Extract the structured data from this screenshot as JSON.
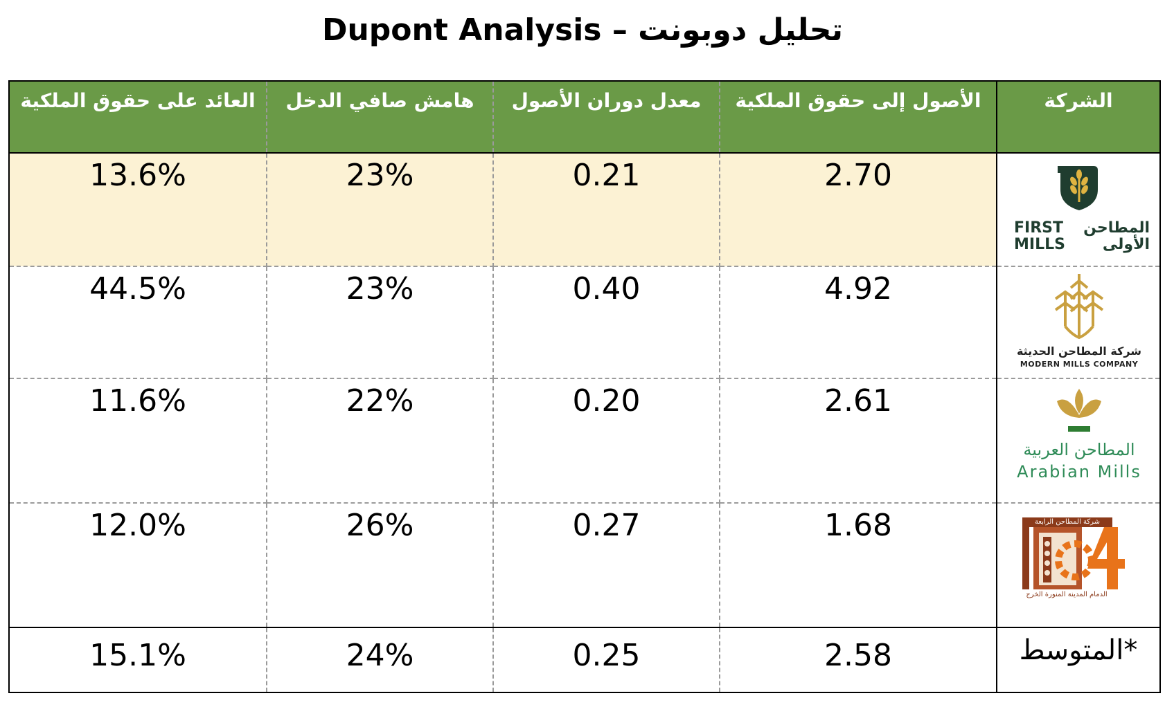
{
  "title": "Dupont Analysis – تحليل دوبونت",
  "colors": {
    "header_bg": "#6a9a47",
    "highlight_row": "#fcf2d4",
    "first_mills_green": "#1f3d2f",
    "modern_mills_gold": "#c9a040",
    "arabian_mills_green": "#2e8b57",
    "fourth_mills_orange": "#e8731a"
  },
  "table": {
    "headers": {
      "company": "الشركة",
      "assets_to_equity": "الأصول إلى حقوق الملكية",
      "asset_turnover": "معدل دوران الأصول",
      "net_margin": "هامش صافي الدخل",
      "roe": "العائد على حقوق الملكية"
    },
    "rows": [
      {
        "company_logo": {
          "icon": "wheat-shield-icon",
          "text_en_1": "FIRST",
          "text_en_2": "MILLS",
          "text_ar_1": "المطاحن",
          "text_ar_2": "الأولى"
        },
        "assets_to_equity": "2.70",
        "asset_turnover": "0.21",
        "net_margin": "23%",
        "roe": "13.6%"
      },
      {
        "company_logo": {
          "icon": "wheat-stalks-icon",
          "text_ar": "شركة المطاحن الحديثة",
          "text_en": "MODERN MILLS COMPANY"
        },
        "assets_to_equity": "4.92",
        "asset_turnover": "0.40",
        "net_margin": "23%",
        "roe": "44.5%"
      },
      {
        "company_logo": {
          "icon": "wheat-leaves-icon",
          "text_ar": "المطاحن العربية",
          "text_en": "Arabian Mills"
        },
        "assets_to_equity": "2.61",
        "asset_turnover": "0.20",
        "net_margin": "22%",
        "roe": "11.6%"
      },
      {
        "company_logo": {
          "icon": "gear-four-icon",
          "text_top": "شركة المطاحن الرابعة",
          "text_bottom": "الدمام   المدينة المنورة   الخرج"
        },
        "assets_to_equity": "1.68",
        "asset_turnover": "0.27",
        "net_margin": "26%",
        "roe": "12.0%"
      }
    ],
    "average": {
      "label": "المتوسط*",
      "assets_to_equity": "2.58",
      "asset_turnover": "0.25",
      "net_margin": "24%",
      "roe": "15.1%"
    }
  }
}
